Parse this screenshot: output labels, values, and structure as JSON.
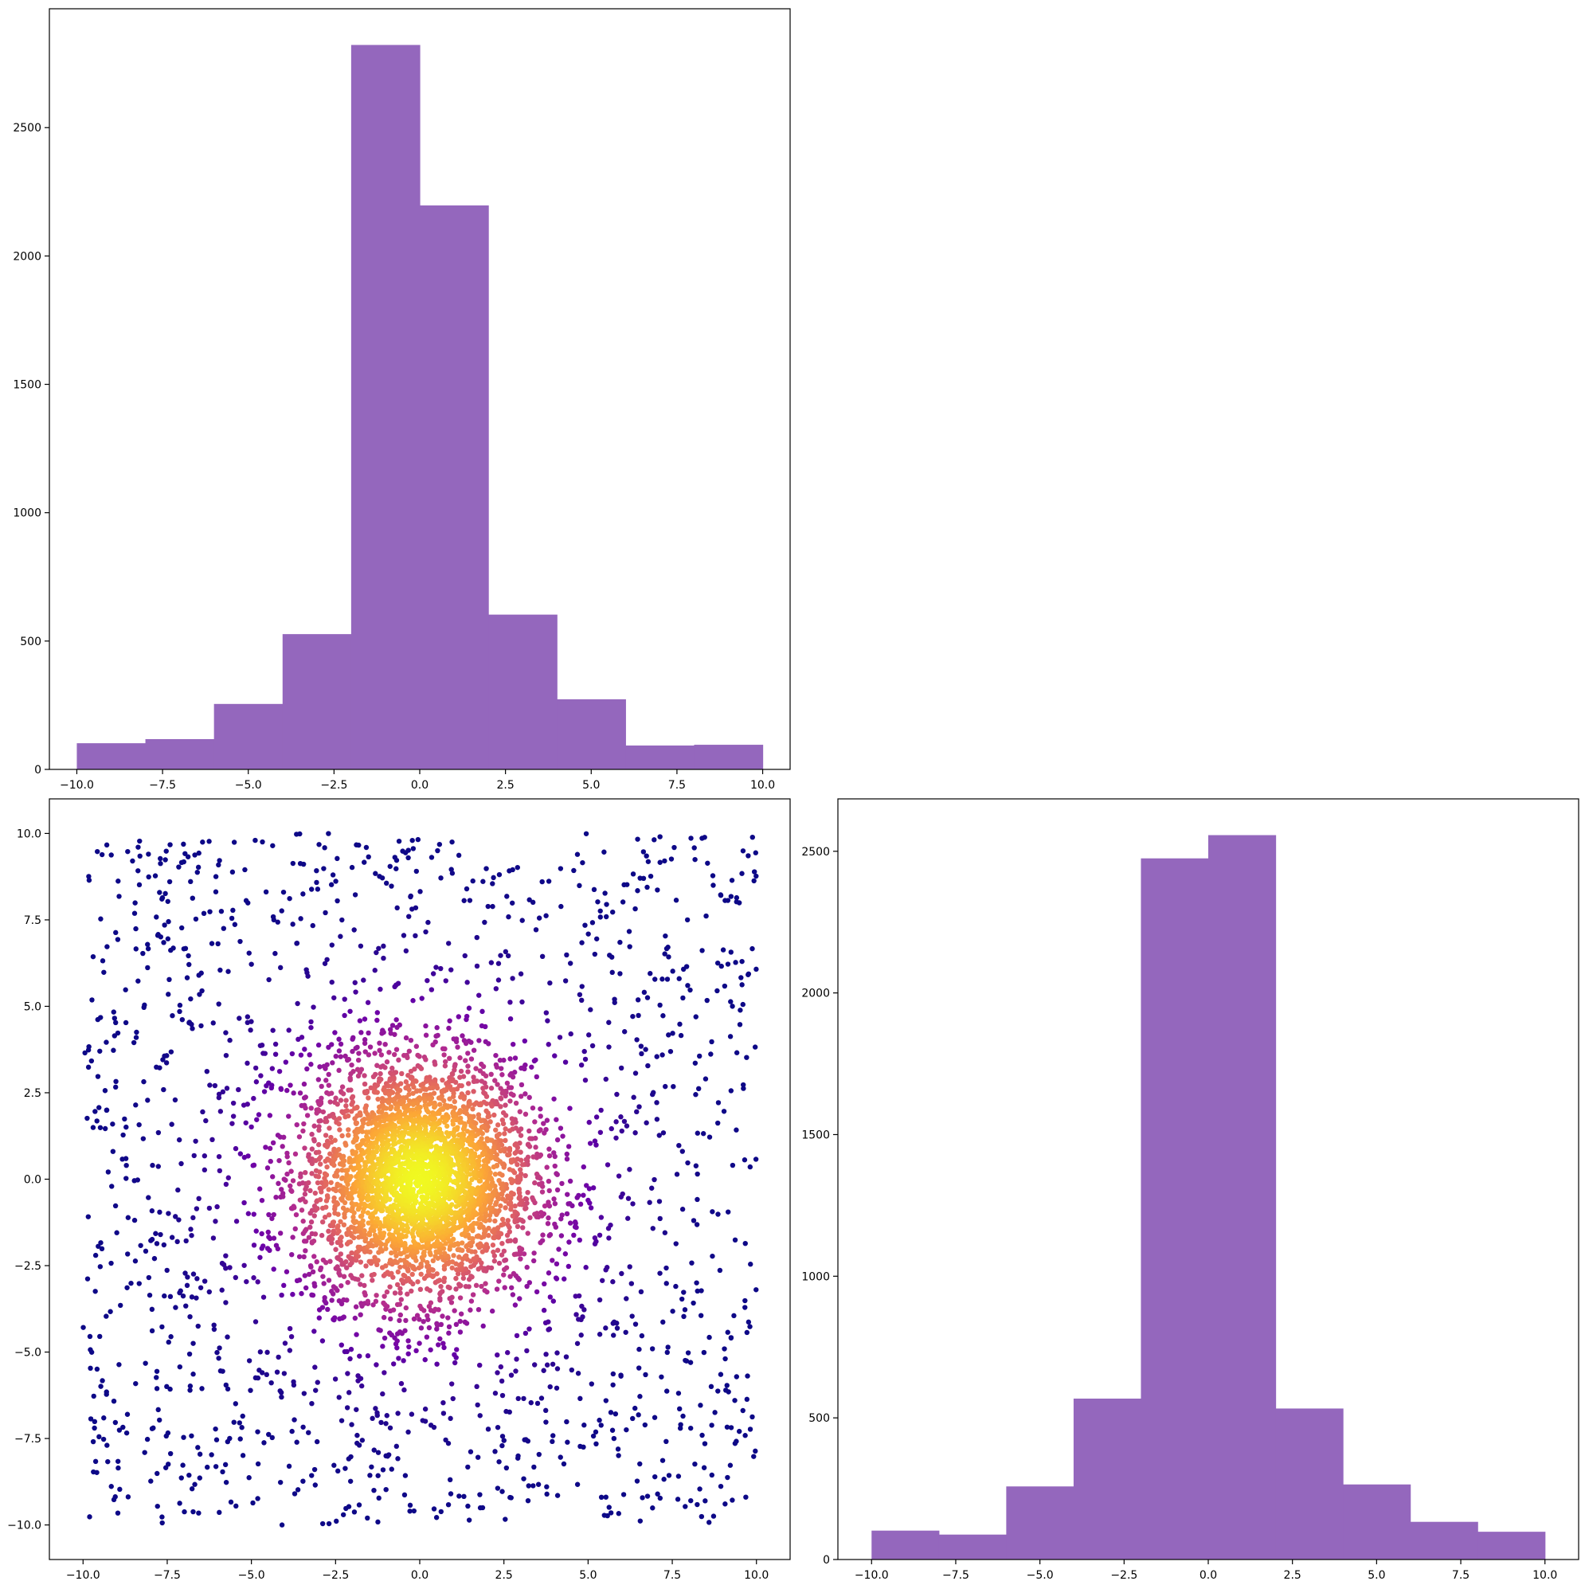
{
  "chart_data": [
    {
      "type": "bar",
      "panel": "top-left",
      "bin_edges": [
        -10,
        -8,
        -6,
        -4,
        -2,
        0,
        2,
        4,
        6,
        8,
        10
      ],
      "values": [
        102,
        118,
        255,
        527,
        2822,
        2197,
        603,
        273,
        93,
        96
      ],
      "xlim": [
        -10.8,
        10.8
      ],
      "ylim": [
        0,
        2963
      ],
      "xticks": [
        -10.0,
        -7.5,
        -5.0,
        -2.5,
        0.0,
        2.5,
        5.0,
        7.5,
        10.0
      ],
      "xtick_labels": [
        "−10.0",
        "−7.5",
        "−5.0",
        "−2.5",
        "0.0",
        "2.5",
        "5.0",
        "7.5",
        "10.0"
      ],
      "yticks": [
        0,
        500,
        1000,
        1500,
        2000,
        2500
      ],
      "ytick_labels": [
        "0",
        "500",
        "1000",
        "1500",
        "2000",
        "2500"
      ],
      "grid": false,
      "bar_color": "#9467bd"
    },
    {
      "type": "scatter",
      "panel": "bottom-left",
      "description_of_points": "about 5000 points; dense core near (0,0) colored by density with the plasma colormap (yellow center, magenta middle, dark purple outskirts), sparse uniform background over [-10,10] x [-10,10]",
      "point_count": 5000,
      "distribution": {
        "core": {
          "center": [
            0,
            0
          ],
          "fraction": 0.68,
          "radial_sd": 1.7
        },
        "uniform": {
          "range": [
            -10,
            10
          ],
          "fraction": 0.32
        }
      },
      "xlim": [
        -11,
        11
      ],
      "ylim": [
        -11,
        11
      ],
      "xticks": [
        -10.0,
        -7.5,
        -5.0,
        -2.5,
        0.0,
        2.5,
        5.0,
        7.5,
        10.0
      ],
      "xtick_labels": [
        "−10.0",
        "−7.5",
        "−5.0",
        "−2.5",
        "0.0",
        "2.5",
        "5.0",
        "7.5",
        "10.0"
      ],
      "yticks": [
        -10.0,
        -7.5,
        -5.0,
        -2.5,
        0.0,
        2.5,
        5.0,
        7.5,
        10.0
      ],
      "ytick_labels": [
        "−10.0",
        "−7.5",
        "−5.0",
        "−2.5",
        "0.0",
        "2.5",
        "5.0",
        "7.5",
        "10.0"
      ],
      "colormap": [
        "#0d0887",
        "#6a00a8",
        "#b12a90",
        "#e16462",
        "#fca636",
        "#f0f921"
      ],
      "grid": false
    },
    {
      "type": "bar",
      "panel": "bottom-right",
      "bin_edges": [
        -10,
        -8,
        -6,
        -4,
        -2,
        0,
        2,
        4,
        6,
        8,
        10
      ],
      "values": [
        102,
        88,
        258,
        568,
        2475,
        2557,
        533,
        265,
        133,
        98
      ],
      "xlim": [
        -11,
        11
      ],
      "ylim": [
        0,
        2685
      ],
      "xticks": [
        -10.0,
        -7.5,
        -5.0,
        -2.5,
        0.0,
        2.5,
        5.0,
        7.5,
        10.0
      ],
      "xtick_labels": [
        "−10.0",
        "−7.5",
        "−5.0",
        "−2.5",
        "0.0",
        "2.5",
        "5.0",
        "7.5",
        "10.0"
      ],
      "yticks": [
        0,
        500,
        1000,
        1500,
        2000,
        2500
      ],
      "ytick_labels": [
        "0",
        "500",
        "1000",
        "1500",
        "2000",
        "2500"
      ],
      "grid": false,
      "bar_color": "#9467bd"
    }
  ]
}
